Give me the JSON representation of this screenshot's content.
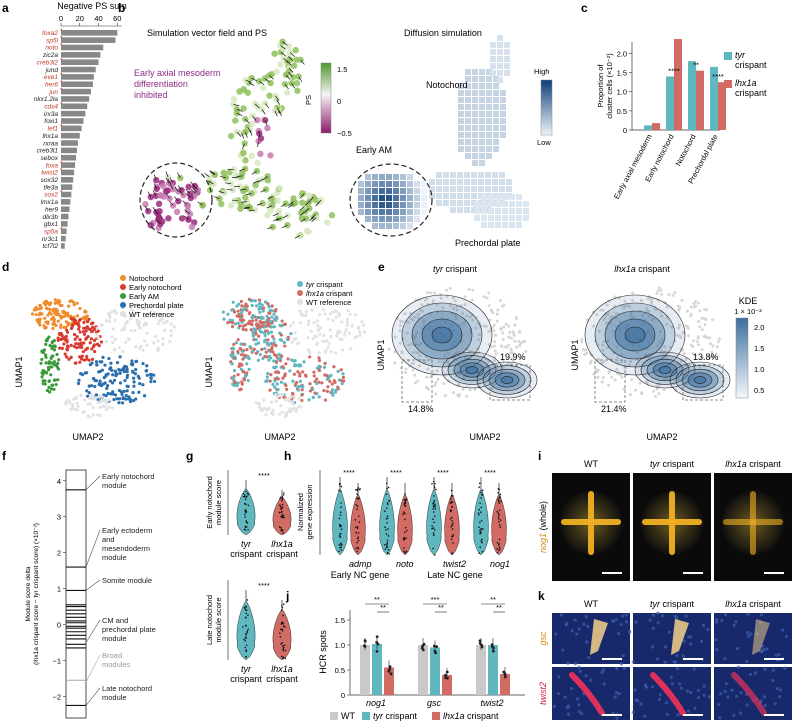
{
  "panel_labels": [
    "a",
    "b",
    "c",
    "d",
    "e",
    "f",
    "g",
    "h",
    "i",
    "j",
    "k"
  ],
  "colors": {
    "wt": "#c9c9c9",
    "tyr": "#5fb7c0",
    "lhx1a": "#d16b63",
    "notochord": "#f08c2e",
    "early_notochord": "#d93a30",
    "early_am": "#3a9a3a",
    "prechordal": "#2b6fad",
    "bar_grey": "#888888",
    "red_gene": "#c0392b"
  },
  "panel_a": {
    "chart_data": {
      "type": "bar",
      "title": "Negative PS sum",
      "xticks": [
        "0",
        "20",
        "40",
        "60"
      ],
      "xlim": [
        0,
        65
      ],
      "genes": [
        "foxa2",
        "sp5l",
        "noto",
        "zic2a",
        "creb3l2",
        "jund",
        "eve1",
        "her6",
        "jun",
        "nkx1.2la",
        "cdx4",
        "irx3a",
        "foxi1",
        "lef1",
        "lhx1a",
        "rxraa",
        "creb3l1",
        "sebox",
        "foxa",
        "twist2",
        "sox32",
        "tfe3a",
        "sox2",
        "lmx1a",
        "her9",
        "dlx3b",
        "gbx1",
        "sp5a",
        "nr3c1",
        "tcf7l2"
      ],
      "red": [
        true,
        true,
        true,
        false,
        true,
        false,
        true,
        true,
        true,
        false,
        true,
        false,
        false,
        true,
        false,
        false,
        false,
        false,
        true,
        true,
        false,
        false,
        true,
        false,
        false,
        false,
        false,
        true,
        false,
        false
      ],
      "values": [
        60,
        58,
        45,
        42,
        40,
        37,
        35,
        34,
        32,
        30,
        28,
        26,
        24,
        22,
        20,
        18,
        17,
        16,
        15,
        14,
        13,
        12,
        11,
        10,
        9,
        8,
        7,
        6,
        5,
        4
      ]
    }
  },
  "panel_b": {
    "title_left": "Simulation vector field and PS",
    "title_right": "Diffusion simulation",
    "annot_purple": "Early axial mesoderm differentiation inhibited",
    "annot_purple_lines": [
      "Early axial mesoderm",
      "differentiation",
      "inhibited"
    ],
    "ps_label": "PS",
    "ps_ticks": [
      "1.5",
      "0",
      "−0.5"
    ],
    "label_notochord": "Notochord",
    "label_early_am": "Early AM",
    "label_prechordal": "Prechordal plate",
    "high": "High",
    "low": "Low"
  },
  "panel_c": {
    "chart_data": {
      "type": "bar",
      "ylabel": "Proportion of cluster cells (×10⁻²)",
      "ylabel_lines": [
        "Proportion of",
        "cluster cells (×10⁻²)"
      ],
      "yticks": [
        "0",
        "0.5",
        "1.0",
        "1.5",
        "2.0"
      ],
      "ylim": [
        0,
        2.3
      ],
      "categories": [
        "Early axial mesoderm",
        "Early notochord",
        "Notochord",
        "Prechordal plate"
      ],
      "series": [
        {
          "name": "tyr crispant",
          "values": [
            0.12,
            1.4,
            1.8,
            1.65
          ]
        },
        {
          "name": "lhx1a crispant",
          "values": [
            0.18,
            2.38,
            1.55,
            1.25
          ]
        }
      ],
      "significance": [
        "",
        "****",
        "**",
        "****"
      ]
    },
    "legend": [
      {
        "gene": "tyr",
        "suffix": "crispant"
      },
      {
        "gene": "lhx1a",
        "suffix": "crispant"
      }
    ]
  },
  "panel_d": {
    "legend_left": [
      "Notochord",
      "Early notochord",
      "Early AM",
      "Prechordal plate",
      "WT reference"
    ],
    "legend_right": [
      {
        "gene": "tyr",
        "suffix": " crispant"
      },
      {
        "gene": "lhx1a",
        "suffix": " crispant"
      },
      {
        "gene": "",
        "suffix": "WT reference"
      }
    ],
    "xlabel": "UMAP2",
    "ylabel": "UMAP1"
  },
  "panel_e": {
    "title_left_gene": "tyr",
    "title_left_suffix": " crispant",
    "title_right_gene": "lhx1a",
    "title_right_suffix": " crispant",
    "xlabel": "UMAP2",
    "ylabel": "UMAP1",
    "pct_left": [
      "19.9%",
      "14.8%"
    ],
    "pct_right": [
      "13.8%",
      "21.4%"
    ],
    "kde_title": "KDE",
    "kde_unit": "1 × 10⁻²",
    "kde_ticks": [
      "2.0",
      "1.5",
      "1.0",
      "0.5"
    ]
  },
  "panel_f": {
    "ylabel_lines": [
      "Module score delta",
      "(lhx1a crispant score − tyr crispant score) (×10⁻²)"
    ],
    "yticks": [
      "4",
      "3",
      "2",
      "1",
      "0",
      "−1",
      "−2"
    ],
    "modules": [
      {
        "label": "Early notochord module",
        "lines": [
          "Early notochord",
          "module"
        ],
        "grey": false
      },
      {
        "label": "Early ectoderm and mesendoderm module",
        "lines": [
          "Early ectoderm",
          "and",
          "mesendoderm",
          "module"
        ],
        "grey": false
      },
      {
        "label": "Somite module",
        "lines": [
          "Somite module"
        ],
        "grey": false
      },
      {
        "label": "CM and prechordal plate module",
        "lines": [
          "CM and",
          "prechordal plate",
          "module"
        ],
        "grey": false
      },
      {
        "label": "Broad modules",
        "lines": [
          "Broad",
          "modules"
        ],
        "grey": true
      },
      {
        "label": "Late notochord module",
        "lines": [
          "Late notochord",
          "module"
        ],
        "grey": false
      }
    ]
  },
  "panel_g": {
    "top_ylabel": [
      "Early notochord",
      "module score"
    ],
    "bottom_ylabel": [
      "Late notochord",
      "module score"
    ],
    "sig": "****",
    "xlabels": [
      {
        "gene": "tyr",
        "suffix": "crispant"
      },
      {
        "gene": "lhx1a",
        "suffix": "crispant"
      }
    ]
  },
  "panel_h": {
    "ylabel": [
      "Normalized",
      "gene expression"
    ],
    "sig": "****",
    "genes": [
      "admp",
      "noto",
      "twist2",
      "nog1"
    ],
    "group_early": "Early NC gene",
    "group_late": "Late NC gene"
  },
  "panel_i": {
    "chart_data": {
      "type": "bar",
      "ylabel": "HCR spots",
      "yticks": [
        "0",
        "0.5",
        "1.0",
        "1.5"
      ],
      "ylim": [
        0,
        1.7
      ],
      "categories": [
        "nog1",
        "gsc",
        "twist2"
      ],
      "series": [
        {
          "name": "WT",
          "values": [
            1.0,
            1.0,
            1.0
          ]
        },
        {
          "name": "tyr crispant",
          "values": [
            1.02,
            0.95,
            1.0
          ]
        },
        {
          "name": "lhx1a crispant",
          "values": [
            0.55,
            0.4,
            0.42
          ]
        }
      ],
      "sig_wt_lhx": [
        "**",
        "***",
        "**"
      ],
      "sig_tyr_lhx": [
        "**",
        "**",
        "**"
      ]
    },
    "legend": [
      {
        "gene": "",
        "suffix": "WT"
      },
      {
        "gene": "tyr",
        "suffix": " crispant"
      },
      {
        "gene": "lhx1a",
        "suffix": " crispant"
      }
    ]
  },
  "panel_j": {
    "titles": [
      {
        "gene": "",
        "suffix": "WT"
      },
      {
        "gene": "tyr",
        "suffix": " crispant"
      },
      {
        "gene": "lhx1a",
        "suffix": " crispant"
      }
    ],
    "side_gene": "nog1",
    "side_suffix": " (whole)"
  },
  "panel_k": {
    "titles": [
      {
        "gene": "",
        "suffix": "WT"
      },
      {
        "gene": "tyr",
        "suffix": " crispant"
      },
      {
        "gene": "lhx1a",
        "suffix": " crispant"
      }
    ],
    "row_labels": [
      "gsc",
      "twist2"
    ]
  }
}
